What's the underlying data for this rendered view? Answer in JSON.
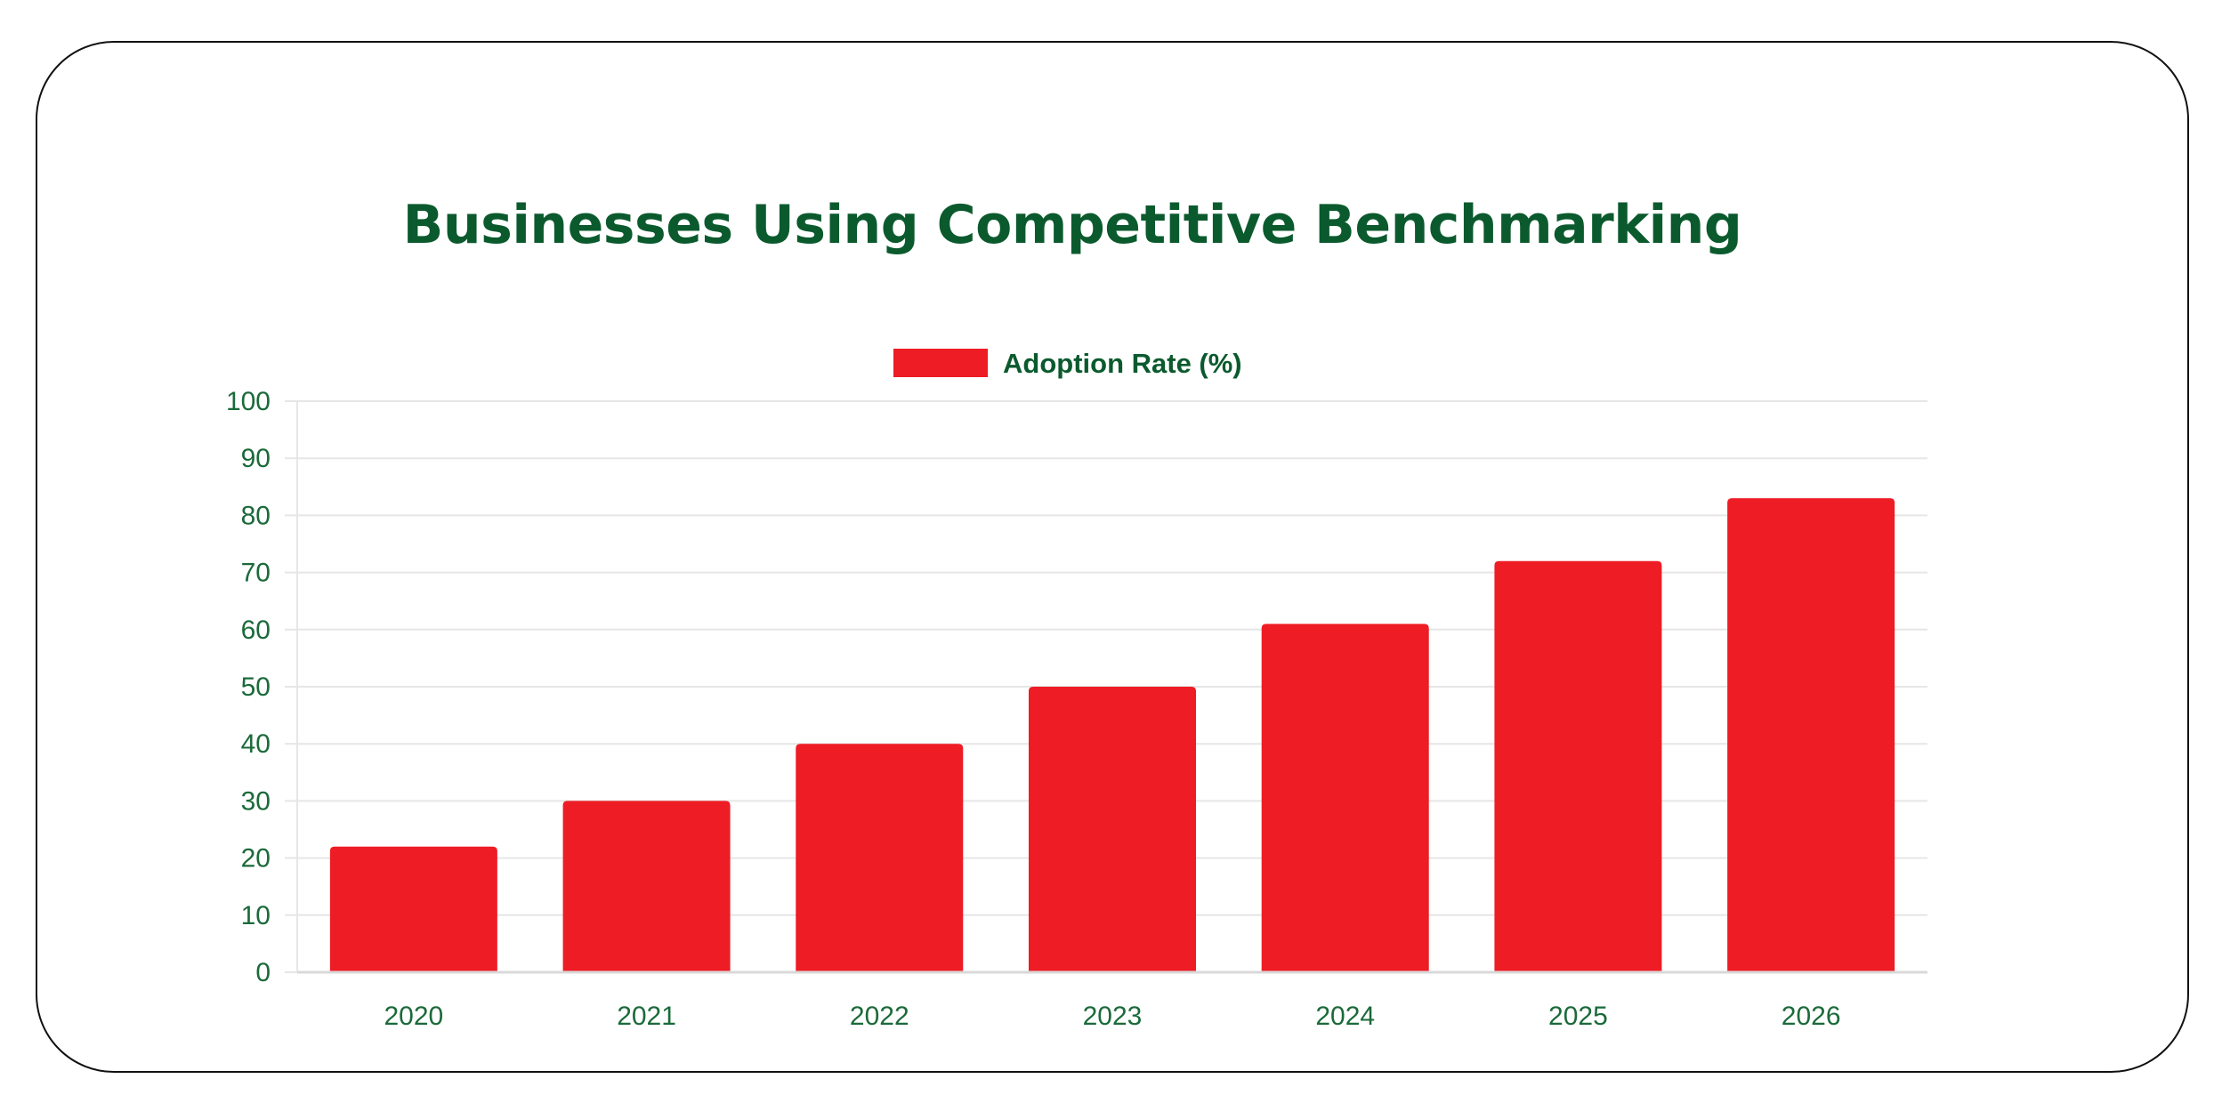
{
  "chart_data": {
    "type": "bar",
    "title": "Businesses Using Competitive Benchmarking",
    "categories": [
      "2020",
      "2021",
      "2022",
      "2023",
      "2024",
      "2025",
      "2026"
    ],
    "series": [
      {
        "name": "Adoption Rate (%)",
        "values": [
          22,
          30,
          40,
          50,
          61,
          72,
          83
        ]
      }
    ],
    "ylim": [
      0,
      100
    ],
    "yticks": [
      0,
      10,
      20,
      30,
      40,
      50,
      60,
      70,
      80,
      90,
      100
    ],
    "xlabel": "",
    "ylabel": "",
    "grid": true,
    "legend": "top-center",
    "colors": {
      "bar": "#ee1c25",
      "text": "#0b5a2e",
      "tick": "#1b6a3a",
      "grid": "#e6e6e6"
    }
  }
}
